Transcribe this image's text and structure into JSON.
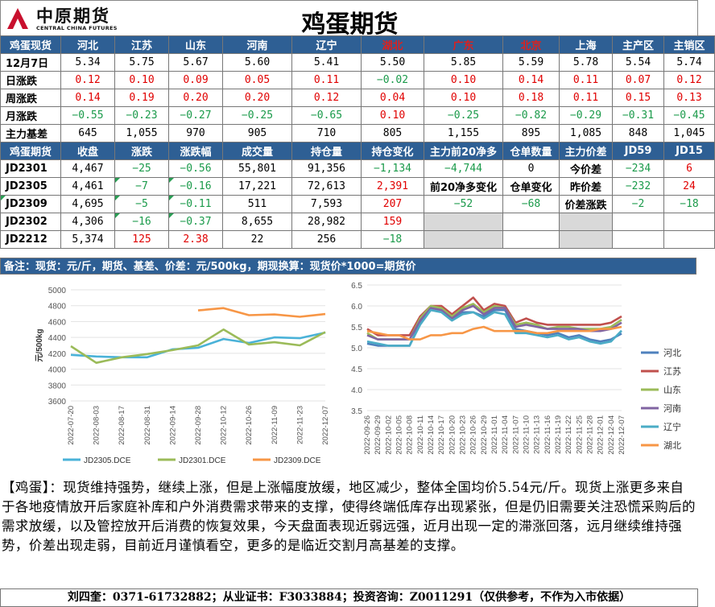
{
  "header": {
    "logo_cn": "中原期货",
    "logo_en": "CENTRAL CHINA FUTURES",
    "title": "鸡蛋期货"
  },
  "spot_header": [
    "鸡蛋现货",
    "河北",
    "江苏",
    "山东",
    "河南",
    "辽宁",
    "湖北",
    "广东",
    "北京",
    "上海",
    "主产区",
    "主销区"
  ],
  "spot_rows": [
    {
      "label": "12月7日",
      "values": [
        "5.34",
        "5.75",
        "5.67",
        "5.60",
        "5.41",
        "5.50",
        "5.85",
        "5.59",
        "5.78",
        "5.54",
        "5.74"
      ]
    },
    {
      "label": "日涨跌",
      "values": [
        "0.12",
        "0.10",
        "0.09",
        "0.05",
        "0.11",
        "−0.02",
        "0.10",
        "0.14",
        "0.11",
        "0.07",
        "0.12"
      ]
    },
    {
      "label": "周涨跌",
      "values": [
        "0.14",
        "0.19",
        "0.20",
        "0.20",
        "0.12",
        "0.04",
        "0.10",
        "0.18",
        "0.11",
        "0.15",
        "0.13"
      ]
    },
    {
      "label": "月涨跌",
      "values": [
        "−0.55",
        "−0.23",
        "−0.27",
        "−0.25",
        "−0.65",
        "0.10",
        "−0.25",
        "−0.82",
        "−0.29",
        "−0.31",
        "−0.45"
      ]
    },
    {
      "label": "主力基差",
      "values": [
        "645",
        "1,055",
        "970",
        "905",
        "710",
        "805",
        "1,155",
        "895",
        "1,085",
        "848",
        "1,045"
      ]
    }
  ],
  "futures_header": [
    "鸡蛋期货",
    "收盘",
    "涨跌",
    "涨跌幅",
    "成交量",
    "持仓量",
    "持仓变化",
    "主力前20净多",
    "仓单数量",
    "主力价差",
    "JD59",
    "JD15"
  ],
  "futures_rows": [
    {
      "contract": "JD2301",
      "close": "4,467",
      "chg": "−25",
      "pct": "−0.56",
      "vol": "55,801",
      "oi": "91,356",
      "oi_chg": "−1,134",
      "x1": "−4,744",
      "x2": "0",
      "x3": "今价差",
      "x4": "−234",
      "x5": "6"
    },
    {
      "contract": "JD2305",
      "close": "4,461",
      "chg": "−7",
      "pct": "−0.16",
      "vol": "17,221",
      "oi": "72,613",
      "oi_chg": "2,391",
      "x1": "前20净多变化",
      "x2": "仓单变化",
      "x3": "昨价差",
      "x4": "−232",
      "x5": "24"
    },
    {
      "contract": "JD2309",
      "close": "4,695",
      "chg": "−5",
      "pct": "−0.11",
      "vol": "511",
      "oi": "7,593",
      "oi_chg": "207",
      "x1": "−52",
      "x2": "−68",
      "x3": "价差涨跌",
      "x4": "−2",
      "x5": "−18"
    },
    {
      "contract": "JD2302",
      "close": "4,306",
      "chg": "−16",
      "pct": "−0.37",
      "vol": "8,655",
      "oi": "28,982",
      "oi_chg": "159",
      "x1": "",
      "x2": "",
      "x3": "",
      "x4": "",
      "x5": ""
    },
    {
      "contract": "JD2212",
      "close": "5,374",
      "chg": "125",
      "pct": "2.38",
      "vol": "22",
      "oi": "256",
      "oi_chg": "−18",
      "x1": "",
      "x2": "",
      "x3": "",
      "x4": "",
      "x5": ""
    }
  ],
  "note": "备注：现货：元/斤，期货、基差、价差：元/500kg，期现换算：现货价*1000=期货价",
  "colors": {
    "header_blue": "#2e5f94",
    "up_red": "#e00000",
    "down_green": "#1a9a4a"
  },
  "chart_data": [
    {
      "type": "line",
      "ylabel": "元/500kg",
      "ylim": [
        3600,
        5000
      ],
      "yticks": [
        3600,
        3800,
        4000,
        4200,
        4400,
        4600,
        4800,
        5000
      ],
      "x": [
        "2022-07-20",
        "2022-08-03",
        "2022-08-17",
        "2022-08-31",
        "2022-09-14",
        "2022-09-28",
        "2022-10-12",
        "2022-10-26",
        "2022-11-09",
        "2022-11-23",
        "2022-12-07"
      ],
      "series": [
        {
          "name": "JD2305.DCE",
          "color": "#4ab2d8",
          "values": [
            4180,
            4160,
            4150,
            4150,
            4250,
            4270,
            4380,
            4330,
            4400,
            4390,
            4461
          ]
        },
        {
          "name": "JD2301.DCE",
          "color": "#9bbb59",
          "values": [
            4290,
            4080,
            4150,
            4190,
            4240,
            4300,
            4500,
            4310,
            4340,
            4300,
            4467
          ]
        },
        {
          "name": "JD2309.DCE",
          "color": "#f79646",
          "values": [
            null,
            null,
            null,
            null,
            null,
            4740,
            4770,
            4680,
            4690,
            4660,
            4695
          ]
        }
      ]
    },
    {
      "type": "line",
      "ylim": [
        3.5,
        6.5
      ],
      "yticks": [
        3.5,
        4.0,
        4.5,
        5.0,
        5.5,
        6.0,
        6.5
      ],
      "x": [
        "2022-09-26",
        "2022-09-29",
        "2022-10-02",
        "2022-10-05",
        "2022-10-08",
        "2022-10-11",
        "2022-10-14",
        "2022-10-17",
        "2022-10-20",
        "2022-10-23",
        "2022-10-26",
        "2022-10-29",
        "2022-11-01",
        "2022-11-04",
        "2022-11-07",
        "2022-11-10",
        "2022-11-13",
        "2022-11-16",
        "2022-11-19",
        "2022-11-22",
        "2022-11-25",
        "2022-11-28",
        "2022-12-01",
        "2022-12-04",
        "2022-12-07"
      ],
      "series": [
        {
          "name": "河北",
          "color": "#4f81bd",
          "values": [
            5.1,
            5.05,
            5.05,
            5.05,
            5.05,
            5.6,
            5.95,
            5.9,
            5.7,
            5.85,
            5.85,
            5.75,
            5.9,
            5.9,
            5.45,
            5.4,
            5.35,
            5.3,
            5.35,
            5.25,
            5.3,
            5.2,
            5.15,
            5.2,
            5.34
          ]
        },
        {
          "name": "江苏",
          "color": "#c0504d",
          "values": [
            5.45,
            5.3,
            5.3,
            5.3,
            5.3,
            5.75,
            6.0,
            6.0,
            5.8,
            6.0,
            6.2,
            5.9,
            6.05,
            6.0,
            5.6,
            5.7,
            5.6,
            5.55,
            5.55,
            5.55,
            5.55,
            5.55,
            5.55,
            5.6,
            5.75
          ]
        },
        {
          "name": "山东",
          "color": "#9bbb59",
          "values": [
            5.35,
            5.2,
            5.2,
            5.2,
            5.2,
            5.7,
            6.0,
            5.95,
            5.75,
            5.95,
            6.05,
            5.85,
            6.0,
            5.95,
            5.55,
            5.6,
            5.55,
            5.45,
            5.5,
            5.5,
            5.45,
            5.45,
            5.45,
            5.5,
            5.67
          ]
        },
        {
          "name": "河南",
          "color": "#8064a2",
          "values": [
            5.3,
            5.2,
            5.2,
            5.2,
            5.2,
            5.65,
            5.95,
            5.9,
            5.7,
            5.9,
            6.0,
            5.8,
            5.95,
            5.95,
            5.5,
            5.55,
            5.5,
            5.45,
            5.45,
            5.45,
            5.45,
            5.4,
            5.4,
            5.45,
            5.6
          ]
        },
        {
          "name": "辽宁",
          "color": "#4bacc6",
          "values": [
            5.15,
            5.1,
            5.05,
            5.05,
            5.05,
            5.55,
            5.9,
            5.85,
            5.65,
            5.8,
            5.85,
            5.7,
            5.85,
            5.8,
            5.35,
            5.35,
            5.3,
            5.25,
            5.3,
            5.2,
            5.25,
            5.15,
            5.1,
            5.15,
            5.41
          ]
        },
        {
          "name": "湖北",
          "color": "#f79646",
          "values": [
            5.4,
            5.35,
            5.3,
            5.3,
            5.2,
            5.2,
            5.3,
            5.3,
            5.35,
            5.35,
            5.45,
            5.5,
            5.4,
            5.4,
            5.4,
            5.4,
            5.35,
            5.35,
            5.4,
            5.4,
            5.4,
            5.4,
            5.45,
            5.45,
            5.5
          ]
        }
      ]
    }
  ],
  "commentary": "【鸡蛋】：现货维持强势，继续上涨，但是上涨幅度放缓，地区减少，整体全国均价5.54元/斤。现货上涨更多来自于各地疫情放开后家庭补库和户外消费需求带来的支撑，使得终端低库存出现紧张，但是仍旧需要关注恐慌采购后的需求放缓，以及管控放开后消费的恢复效果，今天盘面表现近弱远强，近月出现一定的滞涨回落，远月继续维持强势，价差出现走弱，目前近月谨慎看空，更多的是临近交割月高基差的支撑。",
  "footer": "刘四奎：0371-61732882；从业证书：F3033884；投资咨询：Z0011291（仅供参考，不作为入市依据）"
}
